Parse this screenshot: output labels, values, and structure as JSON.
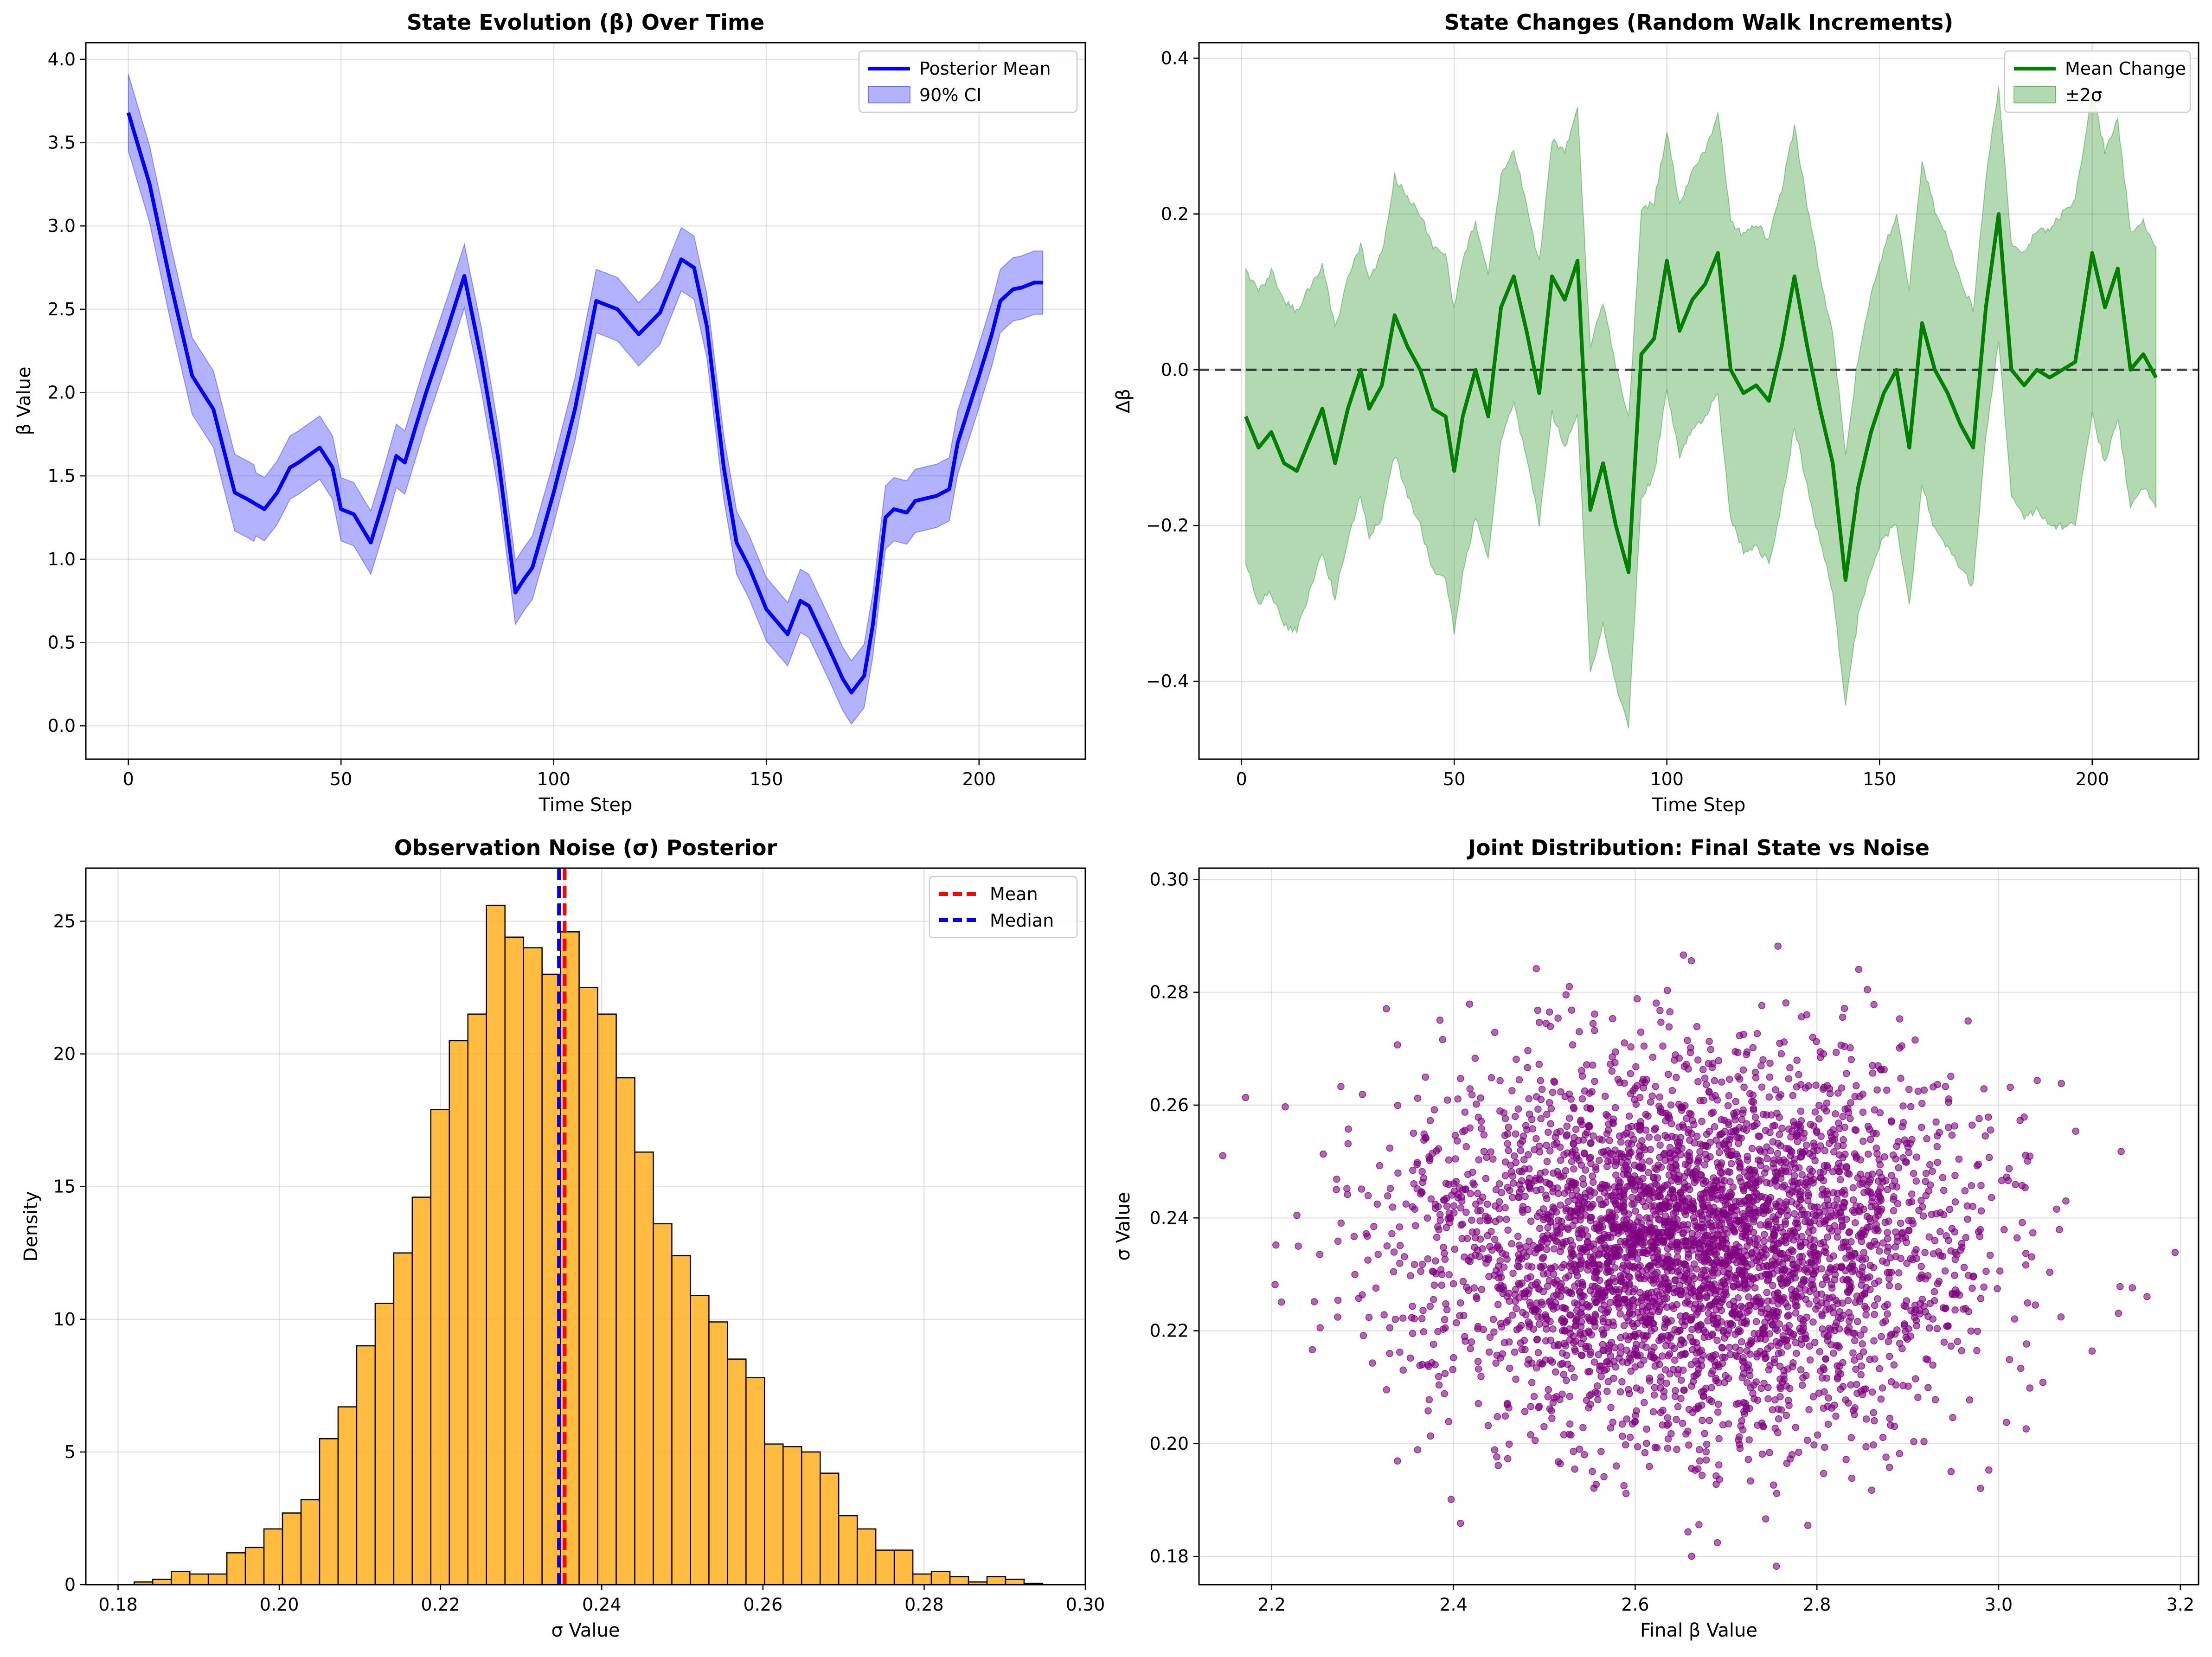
{
  "chart_data": [
    {
      "id": "p1",
      "type": "line",
      "title": "State Evolution (β) Over Time",
      "xlabel": "Time Step",
      "ylabel": "β Value",
      "xlim": [
        -10,
        225
      ],
      "ylim": [
        -0.2,
        4.1
      ],
      "xticks": [
        0,
        50,
        100,
        150,
        200
      ],
      "yticks": [
        0.0,
        0.5,
        1.0,
        1.5,
        2.0,
        2.5,
        3.0,
        3.5,
        4.0
      ],
      "grid": true,
      "legend": "top-right",
      "legend_entries": [
        "Posterior Mean",
        "90% CI"
      ],
      "series": [
        {
          "name": "Posterior Mean",
          "color": "#0000ff",
          "x": [
            0,
            5,
            10,
            15,
            20,
            25,
            28,
            32,
            35,
            38,
            40,
            45,
            48,
            50,
            53,
            57,
            60,
            63,
            65,
            70,
            75,
            79,
            83,
            87,
            91,
            93,
            95,
            100,
            105,
            110,
            115,
            120,
            125,
            130,
            133,
            136,
            140,
            143,
            146,
            150,
            155,
            158,
            160,
            165,
            168,
            170,
            173,
            175,
            178,
            180,
            183,
            185,
            190,
            193,
            195,
            200,
            203,
            205,
            208,
            210,
            213,
            215
          ],
          "y": [
            3.68,
            3.25,
            2.65,
            2.1,
            1.9,
            1.4,
            1.36,
            1.3,
            1.4,
            1.55,
            1.58,
            1.67,
            1.55,
            1.3,
            1.27,
            1.1,
            1.35,
            1.62,
            1.58,
            2.0,
            2.38,
            2.7,
            2.2,
            1.6,
            0.8,
            0.88,
            0.95,
            1.4,
            1.9,
            2.55,
            2.5,
            2.35,
            2.48,
            2.8,
            2.75,
            2.4,
            1.55,
            1.1,
            0.95,
            0.7,
            0.55,
            0.75,
            0.72,
            0.45,
            0.28,
            0.2,
            0.3,
            0.6,
            1.25,
            1.3,
            1.28,
            1.35,
            1.38,
            1.42,
            1.7,
            2.1,
            2.35,
            2.55,
            2.62,
            2.63,
            2.66,
            2.66
          ]
        },
        {
          "name": "90% CI",
          "color": "#0000ff",
          "fill_alpha": 0.3,
          "half_width": 0.2
        }
      ]
    },
    {
      "id": "p2",
      "type": "line",
      "title": "State Changes (Random Walk Increments)",
      "xlabel": "Time Step",
      "ylabel": "Δβ",
      "xlim": [
        -10,
        225
      ],
      "ylim": [
        -0.5,
        0.42
      ],
      "xticks": [
        0,
        50,
        100,
        150,
        200
      ],
      "yticks": [
        -0.4,
        -0.2,
        0.0,
        0.2,
        0.4
      ],
      "grid": true,
      "legend": "top-right",
      "legend_entries": [
        "Mean Change",
        "±2σ"
      ],
      "reference_line": 0.0,
      "series": [
        {
          "name": "Mean Change",
          "color": "#008000",
          "x": [
            1,
            4,
            7,
            10,
            13,
            16,
            19,
            22,
            25,
            28,
            30,
            33,
            36,
            39,
            42,
            45,
            48,
            50,
            52,
            55,
            58,
            61,
            64,
            67,
            70,
            73,
            76,
            79,
            82,
            85,
            88,
            91,
            94,
            97,
            100,
            103,
            106,
            109,
            112,
            115,
            118,
            121,
            124,
            127,
            130,
            133,
            136,
            139,
            142,
            145,
            148,
            151,
            154,
            157,
            160,
            163,
            166,
            169,
            172,
            175,
            178,
            181,
            184,
            187,
            190,
            193,
            196,
            200,
            203,
            206,
            209,
            212,
            215
          ],
          "y": [
            -0.06,
            -0.1,
            -0.08,
            -0.12,
            -0.13,
            -0.09,
            -0.05,
            -0.12,
            -0.05,
            0.0,
            -0.05,
            -0.02,
            0.07,
            0.03,
            0.0,
            -0.05,
            -0.06,
            -0.13,
            -0.06,
            0.0,
            -0.06,
            0.08,
            0.12,
            0.05,
            -0.03,
            0.12,
            0.09,
            0.14,
            -0.18,
            -0.12,
            -0.2,
            -0.26,
            0.02,
            0.04,
            0.14,
            0.05,
            0.09,
            0.11,
            0.15,
            0.0,
            -0.03,
            -0.02,
            -0.04,
            0.03,
            0.12,
            0.03,
            -0.05,
            -0.12,
            -0.27,
            -0.15,
            -0.08,
            -0.03,
            0.0,
            -0.1,
            0.06,
            0.0,
            -0.03,
            -0.07,
            -0.1,
            0.08,
            0.2,
            0.0,
            -0.02,
            0.0,
            -0.01,
            0.0,
            0.01,
            0.15,
            0.08,
            0.13,
            0.0,
            0.02,
            -0.01
          ]
        },
        {
          "name": "±2σ",
          "color": "#008000",
          "fill_alpha": 0.3,
          "half_width": 0.19
        }
      ]
    },
    {
      "id": "p3",
      "type": "bar",
      "title": "Observation Noise (σ) Posterior",
      "xlabel": "σ Value",
      "ylabel": "Density",
      "xlim": [
        0.176,
        0.3
      ],
      "ylim": [
        0,
        27
      ],
      "xticks": [
        0.18,
        0.2,
        0.22,
        0.24,
        0.26,
        0.28,
        0.3
      ],
      "yticks": [
        0,
        5,
        10,
        15,
        20,
        25
      ],
      "grid": true,
      "legend": "top-right",
      "legend_entries": [
        "Mean",
        "Median"
      ],
      "bin_start": 0.182,
      "bin_width": 0.0023,
      "color": "#ffb020",
      "values": [
        0.1,
        0.2,
        0.5,
        0.4,
        0.4,
        1.2,
        1.4,
        2.1,
        2.7,
        3.2,
        5.5,
        6.7,
        9.0,
        10.6,
        12.5,
        14.6,
        17.9,
        20.5,
        21.5,
        25.6,
        24.4,
        24.0,
        23.0,
        24.6,
        22.5,
        21.5,
        19.1,
        16.3,
        13.6,
        12.4,
        10.9,
        9.9,
        8.5,
        7.8,
        5.3,
        5.2,
        5.0,
        4.2,
        2.6,
        2.1,
        1.3,
        1.3,
        0.4,
        0.5,
        0.3,
        0.1,
        0.3,
        0.2,
        0.05
      ],
      "mean": 0.2354,
      "median": 0.2347,
      "mean_color": "#ff0000",
      "median_color": "#0000ff"
    },
    {
      "id": "p4",
      "type": "scatter",
      "title": "Joint Distribution: Final State vs Noise",
      "xlabel": "Final β Value",
      "ylabel": "σ Value",
      "xlim": [
        2.12,
        3.22
      ],
      "ylim": [
        0.175,
        0.302
      ],
      "xticks": [
        2.2,
        2.4,
        2.6,
        2.8,
        3.0,
        3.2
      ],
      "yticks": [
        0.18,
        0.2,
        0.22,
        0.24,
        0.26,
        0.28,
        0.3
      ],
      "grid": true,
      "color": "#800080",
      "n_points": 4000,
      "x_mean": 2.66,
      "x_sd": 0.15,
      "y_mean": 0.235,
      "y_sd": 0.0163
    }
  ]
}
